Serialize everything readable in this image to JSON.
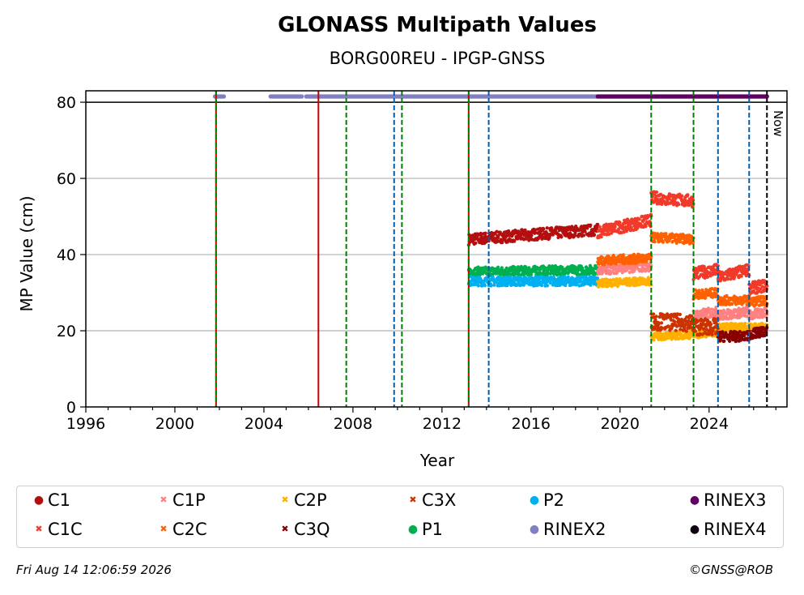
{
  "header": {
    "title": "GLONASS Multipath Values",
    "subtitle": "BORG00REU - IPGP-GNSS"
  },
  "footer": {
    "timestamp": "Fri Aug 14 12:06:59 2026",
    "credit": "©GNSS@ROB"
  },
  "colors": {
    "C1": "#b40f0f",
    "C1C": "#f23a2a",
    "C1P": "#ff8080",
    "C2C": "#ff6000",
    "C2P": "#ffb000",
    "C3Q": "#880000",
    "C3X": "#cc3300",
    "P1": "#00b050",
    "P2": "#00b0f0",
    "RINEX2": "#8080c0",
    "RINEX3": "#600060",
    "RINEX4": "#100010",
    "event_red": "#cc0000",
    "event_green": "#008000",
    "event_blue": "#0060b0"
  },
  "chart_data": {
    "type": "scatter",
    "title": "GLONASS Multipath Values",
    "subtitle": "BORG00REU - IPGP-GNSS",
    "xlabel": "Year",
    "ylabel": "MP Value (cm)",
    "xlim": [
      1996,
      2027.5
    ],
    "ylim": [
      0,
      83
    ],
    "xticks": [
      1996,
      2000,
      2004,
      2008,
      2012,
      2016,
      2020,
      2024
    ],
    "yticks": [
      0,
      20,
      40,
      60,
      80
    ],
    "grid": "horizontal",
    "now_label": "Now",
    "now_year": 2026.6,
    "legend_position": "bottom",
    "legend": [
      {
        "label": "C1",
        "marker": "dot"
      },
      {
        "label": "C1C",
        "marker": "x"
      },
      {
        "label": "C1P",
        "marker": "x"
      },
      {
        "label": "C2C",
        "marker": "x"
      },
      {
        "label": "C2P",
        "marker": "x"
      },
      {
        "label": "C3Q",
        "marker": "x"
      },
      {
        "label": "C3X",
        "marker": "x"
      },
      {
        "label": "P1",
        "marker": "dot"
      },
      {
        "label": "P2",
        "marker": "dot"
      },
      {
        "label": "RINEX2",
        "marker": "dot"
      },
      {
        "label": "RINEX3",
        "marker": "dot"
      },
      {
        "label": "RINEX4",
        "marker": "dot"
      }
    ],
    "series": [
      {
        "name": "C1",
        "segments": [
          {
            "x": [
              2013.2,
              2019.0
            ],
            "y": [
              44,
              46.5
            ]
          }
        ],
        "spread": 1.5
      },
      {
        "name": "P1",
        "segments": [
          {
            "x": [
              2013.2,
              2019.0
            ],
            "y": [
              35.5,
              36
            ]
          }
        ],
        "spread": 1.2
      },
      {
        "name": "P2",
        "segments": [
          {
            "x": [
              2013.2,
              2019.0
            ],
            "y": [
              33,
              33
            ]
          }
        ],
        "spread": 1.2
      },
      {
        "name": "C1C",
        "segments": [
          {
            "x": [
              2019.0,
              2021.4
            ],
            "y": [
              46,
              49
            ]
          },
          {
            "x": [
              2021.4,
              2023.3
            ],
            "y": [
              55,
              54
            ]
          },
          {
            "x": [
              2023.3,
              2024.4
            ],
            "y": [
              35,
              36
            ]
          },
          {
            "x": [
              2024.4,
              2025.8
            ],
            "y": [
              34,
              36
            ]
          },
          {
            "x": [
              2025.8,
              2026.6
            ],
            "y": [
              31,
              32
            ]
          }
        ],
        "spread": 1.6
      },
      {
        "name": "C1P",
        "segments": [
          {
            "x": [
              2019.0,
              2021.4
            ],
            "y": [
              36,
              37
            ]
          },
          {
            "x": [
              2023.3,
              2024.4
            ],
            "y": [
              24,
              25
            ]
          },
          {
            "x": [
              2024.4,
              2025.8
            ],
            "y": [
              24,
              25
            ]
          },
          {
            "x": [
              2025.8,
              2026.6
            ],
            "y": [
              24,
              25
            ]
          }
        ],
        "spread": 1.3
      },
      {
        "name": "C2C",
        "segments": [
          {
            "x": [
              2019.0,
              2021.4
            ],
            "y": [
              38.5,
              39
            ]
          },
          {
            "x": [
              2021.4,
              2023.3
            ],
            "y": [
              44.5,
              44
            ]
          },
          {
            "x": [
              2023.3,
              2024.4
            ],
            "y": [
              29.5,
              30
            ]
          },
          {
            "x": [
              2024.4,
              2025.8
            ],
            "y": [
              28,
              28
            ]
          },
          {
            "x": [
              2025.8,
              2026.6
            ],
            "y": [
              27.5,
              28
            ]
          }
        ],
        "spread": 1.2
      },
      {
        "name": "C2P",
        "segments": [
          {
            "x": [
              2019.0,
              2021.4
            ],
            "y": [
              32.5,
              33
            ]
          },
          {
            "x": [
              2021.4,
              2023.3
            ],
            "y": [
              18.5,
              19
            ]
          },
          {
            "x": [
              2023.3,
              2024.4
            ],
            "y": [
              19,
              19.5
            ]
          },
          {
            "x": [
              2024.4,
              2025.8
            ],
            "y": [
              21,
              21
            ]
          },
          {
            "x": [
              2025.8,
              2026.6
            ],
            "y": [
              21,
              21
            ]
          }
        ],
        "spread": 1.0
      },
      {
        "name": "C3X",
        "segments": [
          {
            "x": [
              2021.4,
              2023.3
            ],
            "y": [
              22.5,
              22
            ]
          },
          {
            "x": [
              2023.3,
              2024.4
            ],
            "y": [
              21,
              21
            ]
          }
        ],
        "spread": 2.2
      },
      {
        "name": "C3Q",
        "segments": [
          {
            "x": [
              2024.4,
              2025.8
            ],
            "y": [
              18.5,
              18.5
            ]
          },
          {
            "x": [
              2025.8,
              2026.6
            ],
            "y": [
              19,
              20
            ]
          }
        ],
        "spread": 1.3
      },
      {
        "name": "RINEX2",
        "segments": [
          {
            "x": [
              2001.8,
              2002.2
            ],
            "y": [
              81.5,
              81.5
            ]
          },
          {
            "x": [
              2004.3,
              2005.7
            ],
            "y": [
              81.5,
              81.5
            ]
          },
          {
            "x": [
              2005.9,
              2019.0
            ],
            "y": [
              81.5,
              81.5
            ]
          }
        ],
        "spread": 0
      },
      {
        "name": "RINEX3",
        "segments": [
          {
            "x": [
              2019.0,
              2026.6
            ],
            "y": [
              81.5,
              81.5
            ]
          }
        ],
        "spread": 0
      }
    ],
    "event_lines": [
      {
        "year": 2001.85,
        "color": "event_red",
        "style": "solid"
      },
      {
        "year": 2001.85,
        "color": "event_green",
        "style": "dashed"
      },
      {
        "year": 2006.45,
        "color": "event_red",
        "style": "solid"
      },
      {
        "year": 2007.7,
        "color": "event_green",
        "style": "dashed"
      },
      {
        "year": 2009.85,
        "color": "event_blue",
        "style": "dashed"
      },
      {
        "year": 2010.2,
        "color": "event_green",
        "style": "dashed"
      },
      {
        "year": 2013.2,
        "color": "event_red",
        "style": "solid"
      },
      {
        "year": 2013.2,
        "color": "event_green",
        "style": "dashed"
      },
      {
        "year": 2014.1,
        "color": "event_blue",
        "style": "dashed"
      },
      {
        "year": 2021.4,
        "color": "event_green",
        "style": "dashed"
      },
      {
        "year": 2023.3,
        "color": "event_green",
        "style": "dashed"
      },
      {
        "year": 2024.4,
        "color": "event_blue",
        "style": "dashed"
      },
      {
        "year": 2025.8,
        "color": "event_blue",
        "style": "dashed"
      }
    ]
  }
}
